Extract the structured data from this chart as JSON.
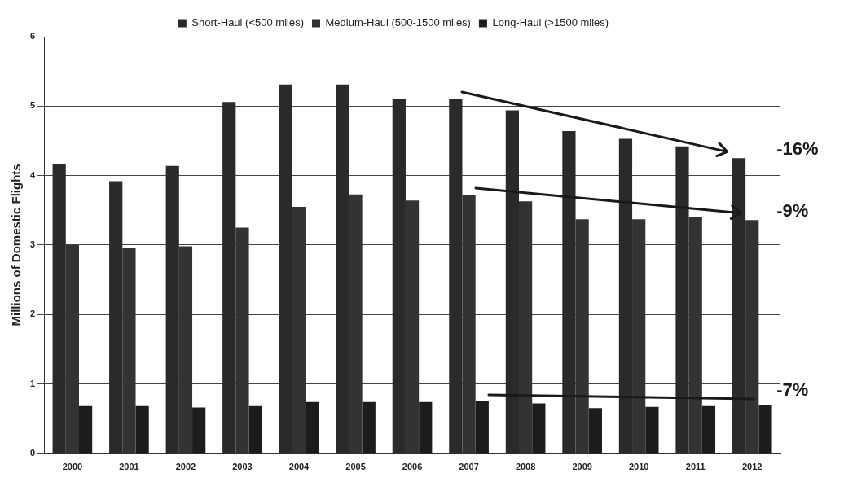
{
  "chart_data": {
    "type": "bar",
    "ylabel": "Millions of Domestic Flights",
    "categories": [
      "2000",
      "2001",
      "2002",
      "2003",
      "2004",
      "2005",
      "2006",
      "2007",
      "2008",
      "2009",
      "2010",
      "2011",
      "2012"
    ],
    "series": [
      {
        "name": "Short-Haul (<500 miles)",
        "color": "#2a2a2a",
        "values": [
          4.17,
          3.92,
          4.14,
          5.06,
          5.31,
          5.31,
          5.11,
          5.11,
          4.94,
          4.64,
          4.53,
          4.42,
          4.25
        ]
      },
      {
        "name": "Medium-Haul (500-1500 miles)",
        "color": "#333333",
        "values": [
          3.0,
          2.96,
          2.98,
          3.25,
          3.55,
          3.73,
          3.64,
          3.72,
          3.63,
          3.37,
          3.37,
          3.41,
          3.36
        ]
      },
      {
        "name": "Long-Haul (>1500 miles)",
        "color": "#1c1c1c",
        "values": [
          0.68,
          0.68,
          0.66,
          0.68,
          0.74,
          0.74,
          0.74,
          0.75,
          0.72,
          0.65,
          0.67,
          0.68,
          0.69
        ]
      }
    ],
    "ylim": [
      0,
      6
    ],
    "yticks": [
      0,
      1,
      2,
      3,
      4,
      5,
      6
    ],
    "grid": "y",
    "legend": "top",
    "annotations": [
      "-16%",
      "-9%",
      "-7%"
    ]
  }
}
